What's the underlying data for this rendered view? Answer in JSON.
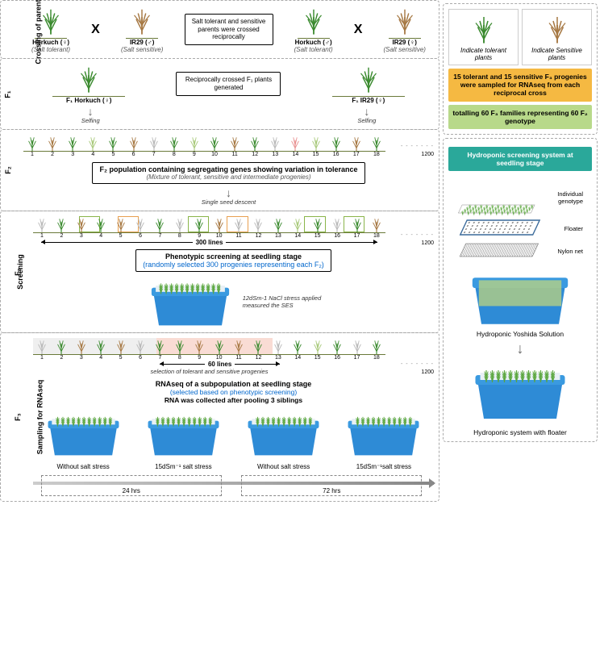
{
  "colors": {
    "tolerant": "#3a8a2e",
    "sensitive": "#a67843",
    "intermediate_light": "#a8c97a",
    "intermediate_gray": "#b8b8b8",
    "intermediate_pink": "#e89090",
    "tub_blue": "#2e8bd6",
    "tub_top": "#e8f0f5",
    "seedling_green": "#5aa63c",
    "soil_line": "#6a7a3a",
    "highlight_green": "#8ab54a",
    "highlight_orange": "#e8a050",
    "highlight_pink_bg": "#f5c4b8",
    "highlight_gray_bg": "#e0e0e0",
    "banner_orange": "#f5b942",
    "banner_green": "#b8d98a",
    "banner_teal": "#2aa89a"
  },
  "stages": {
    "crossing": {
      "label": "Crossing of parents",
      "parent_a": {
        "name": "Horkuch (♀)",
        "trait": "(Salt tolerant)"
      },
      "parent_b": {
        "name": "IR29 (♂)",
        "trait": "(Salt sensitive)"
      },
      "parent_c": {
        "name": "Horkuch (♂)",
        "trait": "(Salt tolerant)"
      },
      "parent_d": {
        "name": "IR29 (♀)",
        "trait": "(Salt sensitive)"
      },
      "cross_symbol": "X",
      "info": "Salt tolerant and sensitive parents were crossed reciprocally"
    },
    "f1": {
      "label": "F₁",
      "left": "F₁ Horkuch (♀)",
      "right": "F₁ IR29 (♀)",
      "info": "Reciprocally crossed F₁ plants generated",
      "selfing": "Selfing"
    },
    "f2": {
      "label": "F₂",
      "numbers": [
        "1",
        "2",
        "3",
        "4",
        "5",
        "6",
        "7",
        "8",
        "9",
        "10",
        "11",
        "12",
        "13",
        "14",
        "15",
        "16",
        "17",
        "18"
      ],
      "end_count": "1200",
      "title": "F₂ population containing segregating genes showing variation in tolerance",
      "subtitle": "(Mixture of tolerant, sensitive and intermediate progenies)",
      "descent": "Single seed descent"
    },
    "f3_screen": {
      "label_f3": "F₃",
      "label_screen": "Screening",
      "range": "300 lines",
      "end_count": "1200",
      "title": "Phenotypic screening at seedling stage",
      "subtitle": "(randomly selected 300 progenies representing each F₂)",
      "tub_note": "12dSm-1 NaCl stress applied\nmeasured the SES"
    },
    "f3_rnaseq": {
      "label_f3": "F₃",
      "label_sampling": "Sampling for RNAseq",
      "range": "60 lines",
      "end_count": "1200",
      "selection_note": "selection of tolerant and sensitive progenies",
      "title": "RNAseq of a subpopulation at seedling stage",
      "subtitle_blue": "(selected based on phenotypic screening)",
      "subtitle2": "RNA was collected after pooling 3 siblings",
      "tubs": [
        {
          "cap": "Without salt stress"
        },
        {
          "cap": "15dSm⁻¹ salt stress"
        },
        {
          "cap": "Without salt stress"
        },
        {
          "cap": "15dSm⁻¹salt stress"
        }
      ],
      "timeline": {
        "seg1": "24 hrs",
        "seg2": "72 hrs"
      }
    }
  },
  "sidebar": {
    "legend": {
      "tolerant": "Indicate tolerant plants",
      "sensitive": "Indicate Sensitive plants"
    },
    "banner1": "15 tolerant and 15 sensitive F₃ progenies were sampled for RNAseq from each reciprocal cross",
    "banner2": "totalling 60 F₃ families representing 60 F₂ genotype",
    "hydro_title": "Hydroponic screening system at seedling stage",
    "layers": {
      "genotype": "Individual genotype",
      "floater": "Floater",
      "net": "Nylon net"
    },
    "solution": "Hydroponic Yoshida Solution",
    "final": "Hydroponic system with floater"
  },
  "f2_plant_colors": [
    "#3a8a2e",
    "#a67843",
    "#3a8a2e",
    "#a8c97a",
    "#3a8a2e",
    "#a67843",
    "#b8b8b8",
    "#3a8a2e",
    "#a8c97a",
    "#3a8a2e",
    "#a67843",
    "#3a8a2e",
    "#b8b8b8",
    "#e89090",
    "#a8c97a",
    "#3a8a2e",
    "#a67843",
    "#3a8a2e"
  ],
  "f3_plant_colors": [
    "#b8b8b8",
    "#3a8a2e",
    "#a67843",
    "#3a8a2e",
    "#a67843",
    "#b8b8b8",
    "#3a8a2e",
    "#b8b8b8",
    "#3a8a2e",
    "#a67843",
    "#b8b8b8",
    "#b8b8b8",
    "#3a8a2e",
    "#a8c97a",
    "#3a8a2e",
    "#b8b8b8",
    "#3a8a2e",
    "#a67843"
  ],
  "f3b_plant_colors": [
    "#b8b8b8",
    "#3a8a2e",
    "#a67843",
    "#3a8a2e",
    "#a67843",
    "#b8b8b8",
    "#3a8a2e",
    "#3a8a2e",
    "#a67843",
    "#3a8a2e",
    "#a67843",
    "#3a8a2e",
    "#b8b8b8",
    "#3a8a2e",
    "#a8c97a",
    "#3a8a2e",
    "#b8b8b8",
    "#3a8a2e"
  ]
}
